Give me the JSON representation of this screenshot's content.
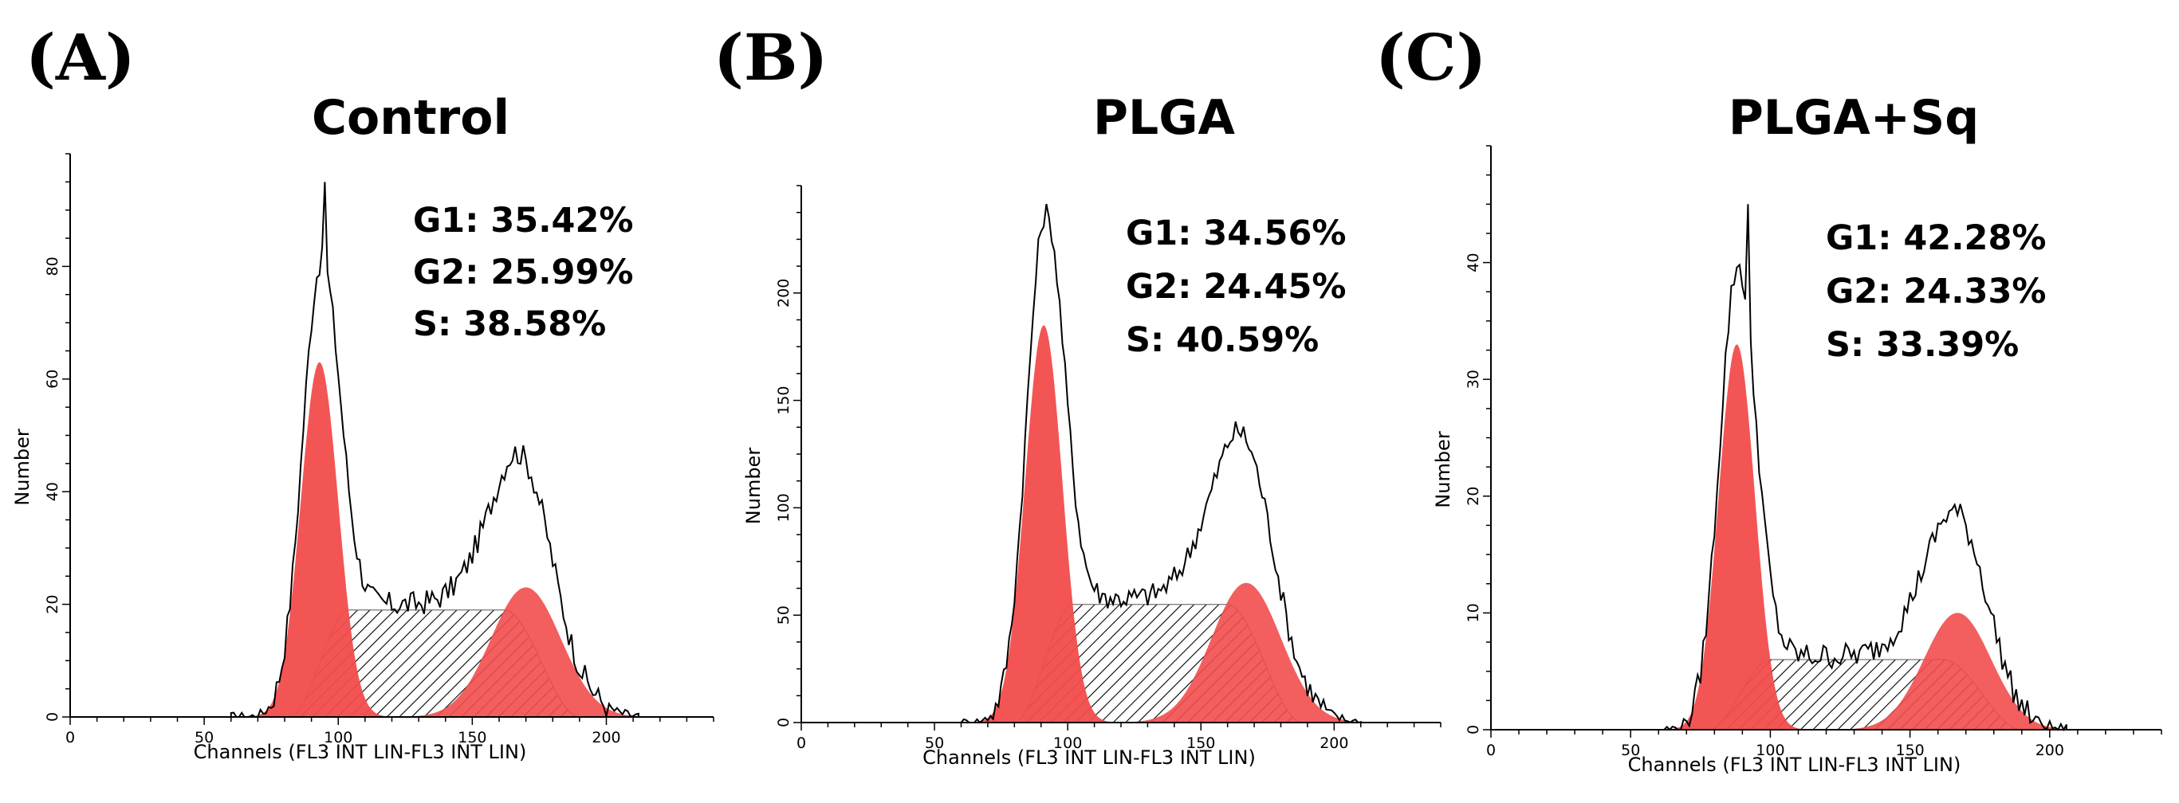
{
  "chart_data": [
    {
      "type": "histogram",
      "panel_label": "(A)",
      "title": "Control",
      "xlabel": "Channels (FL3 INT LIN-FL3 INT LIN)",
      "ylabel": "Number",
      "xlim": [
        0,
        240
      ],
      "ylim": [
        0,
        100
      ],
      "xticks": [
        0,
        50,
        100,
        150,
        200
      ],
      "yticks": [
        0,
        20,
        40,
        60,
        80
      ],
      "stats": [
        "G1: 35.42%",
        "G2: 25.99%",
        "S: 38.58%"
      ],
      "g1_peak": {
        "center": 93,
        "height": 63,
        "width": 7
      },
      "g2_peak": {
        "center": 170,
        "height": 23,
        "width": 13
      },
      "s_phase": {
        "start": 82,
        "end": 190,
        "height": 19
      },
      "histogram_peak": {
        "x": 95,
        "y": 95
      },
      "histogram_range": [
        60,
        212
      ],
      "colors": {
        "fill": "#f24c4c",
        "line": "#000000"
      }
    },
    {
      "type": "histogram",
      "panel_label": "(B)",
      "title": "PLGA",
      "xlabel": "Channels (FL3 INT LIN-FL3 INT LIN)",
      "ylabel": "Number",
      "xlim": [
        0,
        240
      ],
      "ylim": [
        0,
        250
      ],
      "xticks": [
        0,
        50,
        100,
        150,
        200
      ],
      "yticks": [
        0,
        50,
        100,
        150,
        200
      ],
      "stats": [
        "G1: 34.56%",
        "G2: 24.45%",
        "S: 40.59%"
      ],
      "g1_peak": {
        "center": 91,
        "height": 185,
        "width": 7
      },
      "g2_peak": {
        "center": 167,
        "height": 65,
        "width": 13
      },
      "s_phase": {
        "start": 80,
        "end": 188,
        "height": 55
      },
      "histogram_peak": {
        "x": 93,
        "y": 235
      },
      "histogram_range": [
        60,
        210
      ],
      "colors": {
        "fill": "#f24c4c",
        "line": "#000000"
      }
    },
    {
      "type": "histogram",
      "panel_label": "(C)",
      "title": "PLGA+Sq",
      "xlabel": "Channels (FL3 INT LIN-FL3 INT LIN)",
      "ylabel": "Number",
      "xlim": [
        0,
        240
      ],
      "ylim": [
        0,
        50
      ],
      "xticks": [
        0,
        50,
        100,
        150,
        200
      ],
      "yticks": [
        0,
        10,
        20,
        30,
        40
      ],
      "stats": [
        "G1: 42.28%",
        "G2: 24.33%",
        "S: 33.39%"
      ],
      "g1_peak": {
        "center": 88,
        "height": 33,
        "width": 6.5
      },
      "g2_peak": {
        "center": 167,
        "height": 10,
        "width": 12
      },
      "s_phase": {
        "start": 78,
        "end": 190,
        "height": 6
      },
      "histogram_peak": {
        "x": 92,
        "y": 45
      },
      "histogram_range": [
        62,
        206
      ],
      "colors": {
        "fill": "#f24c4c",
        "line": "#000000"
      }
    }
  ]
}
